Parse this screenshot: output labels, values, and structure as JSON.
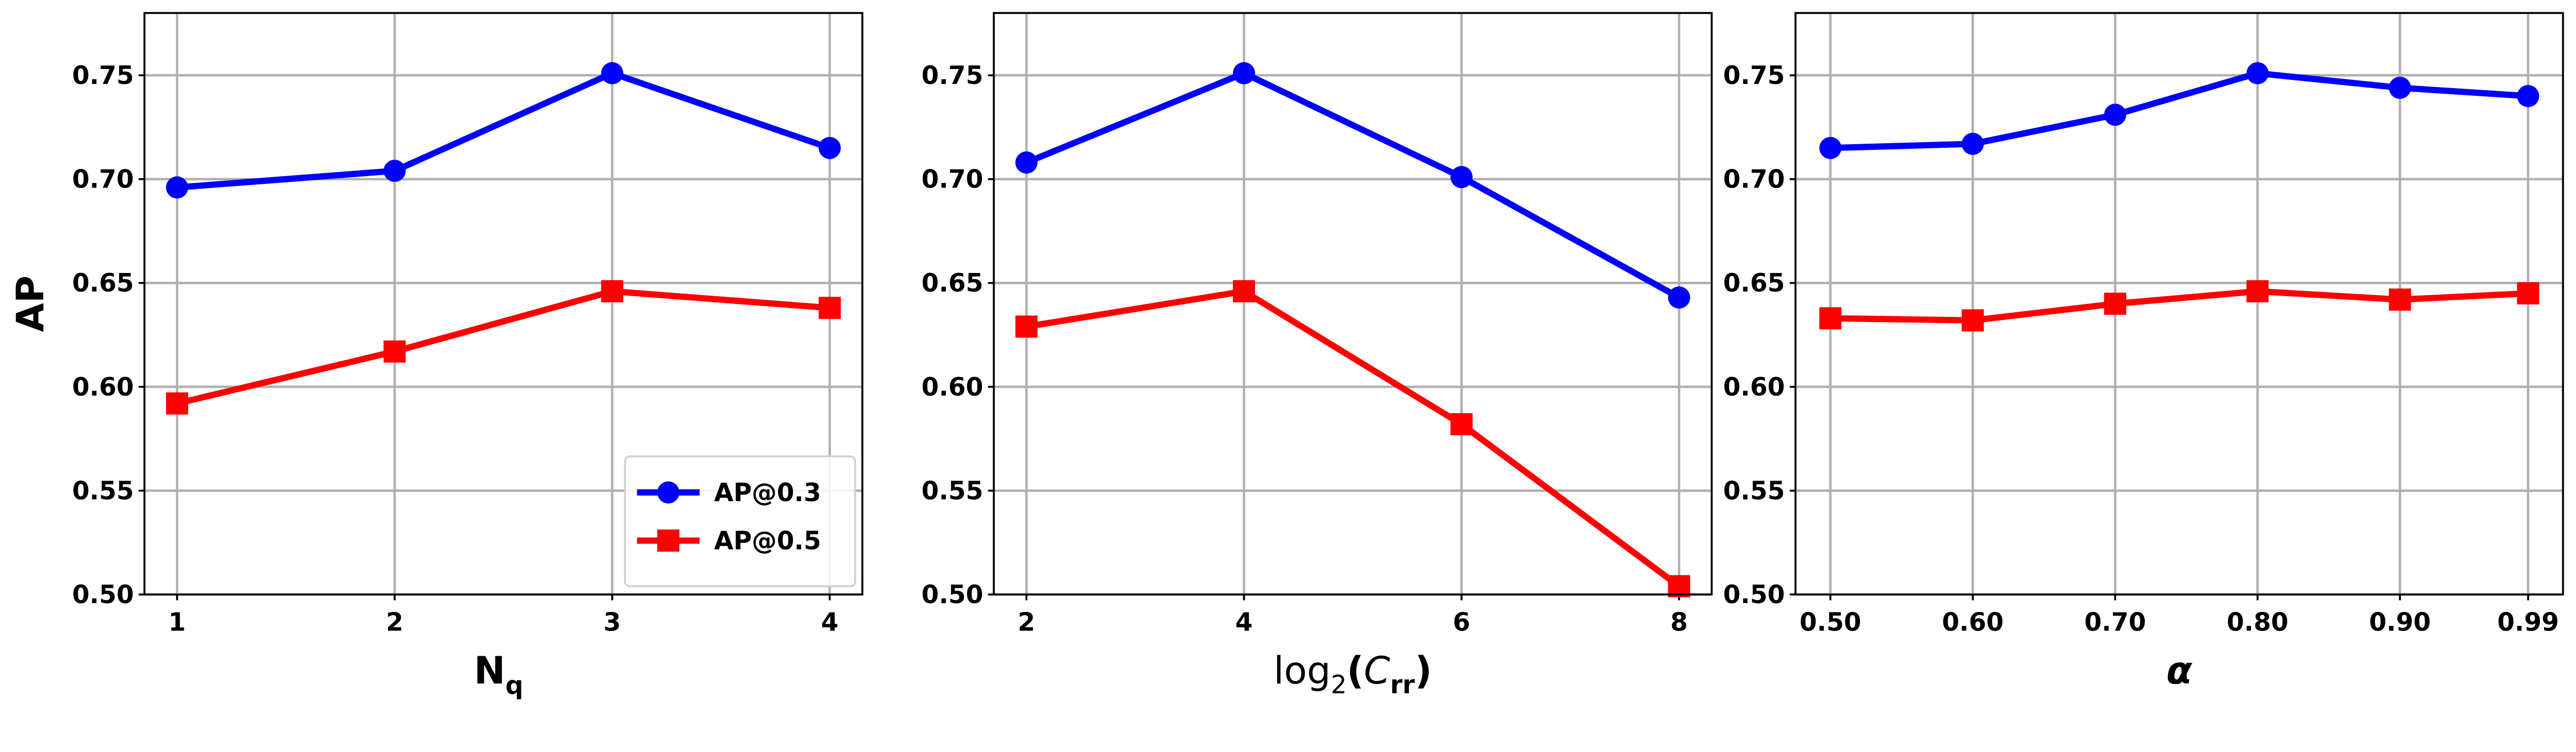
{
  "chart_data": [
    {
      "type": "line",
      "xlabel": "N",
      "xlabel_sub": "q",
      "ylabel": "AP",
      "x": [
        1,
        2,
        3,
        4
      ],
      "xticks": [
        "1",
        "2",
        "3",
        "4"
      ],
      "xlim": [
        0.85,
        4.15
      ],
      "ylim": [
        0.5,
        0.78
      ],
      "yticks": [
        "0.50",
        "0.55",
        "0.60",
        "0.65",
        "0.70",
        "0.75"
      ],
      "grid": true,
      "legend": "lower-right",
      "series": [
        {
          "name": "AP@0.3",
          "color": "#0000ff",
          "marker": "circle",
          "values": [
            0.696,
            0.704,
            0.751,
            0.715
          ]
        },
        {
          "name": "AP@0.5",
          "color": "#ff0000",
          "marker": "square",
          "values": [
            0.592,
            0.617,
            0.646,
            0.638
          ]
        }
      ]
    },
    {
      "type": "line",
      "xlabel_pre": "log",
      "xlabel_log_base": "2",
      "xlabel_var": "C",
      "xlabel_sub": "rr",
      "ylabel": "",
      "x": [
        2,
        4,
        6,
        8
      ],
      "xticks": [
        "2",
        "4",
        "6",
        "8"
      ],
      "xlim": [
        1.7,
        8.3
      ],
      "ylim": [
        0.5,
        0.78
      ],
      "yticks": [
        "0.50",
        "0.55",
        "0.60",
        "0.65",
        "0.70",
        "0.75"
      ],
      "grid": true,
      "series": [
        {
          "name": "AP@0.3",
          "color": "#0000ff",
          "marker": "circle",
          "values": [
            0.708,
            0.751,
            0.701,
            0.643
          ]
        },
        {
          "name": "AP@0.5",
          "color": "#ff0000",
          "marker": "square",
          "values": [
            0.629,
            0.646,
            0.582,
            0.504
          ]
        }
      ]
    },
    {
      "type": "line",
      "xlabel": "α",
      "ylabel": "",
      "x": [
        0.5,
        0.6,
        0.7,
        0.8,
        0.9,
        0.99
      ],
      "xticks": [
        "0.50",
        "0.60",
        "0.70",
        "0.80",
        "0.90",
        "0.99"
      ],
      "xlim": [
        0.4755,
        1.0145
      ],
      "ylim": [
        0.5,
        0.78
      ],
      "yticks": [
        "0.50",
        "0.55",
        "0.60",
        "0.65",
        "0.70",
        "0.75"
      ],
      "grid": true,
      "series": [
        {
          "name": "AP@0.3",
          "color": "#0000ff",
          "marker": "circle",
          "values": [
            0.715,
            0.717,
            0.731,
            0.751,
            0.744,
            0.74
          ]
        },
        {
          "name": "AP@0.5",
          "color": "#ff0000",
          "marker": "square",
          "values": [
            0.633,
            0.632,
            0.64,
            0.646,
            0.642,
            0.645
          ]
        }
      ]
    }
  ]
}
